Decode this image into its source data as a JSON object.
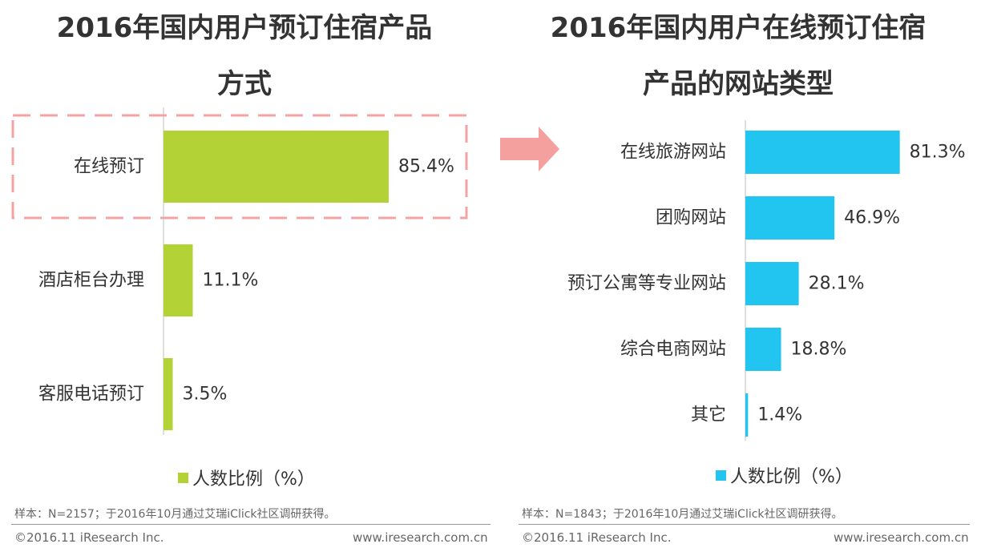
{
  "colors": {
    "left_bar": "#B2D235",
    "right_bar": "#22C5F0",
    "highlight": "#F3A3A3",
    "arrow": "#F4A09E",
    "axis": "#BFBFBF"
  },
  "chart_data": [
    {
      "type": "bar",
      "orientation": "horizontal",
      "title_line1": "2016年国内用户预订住宿产品",
      "title_line2": "方式",
      "categories": [
        "在线预订",
        "酒店柜台办理",
        "客服电话预订"
      ],
      "values": [
        85.4,
        11.1,
        3.5
      ],
      "value_labels": [
        "85.4%",
        "11.1%",
        "3.5%"
      ],
      "highlighted_category": "在线预订",
      "legend": "人数比例（%）",
      "xlim": [
        0,
        100
      ]
    },
    {
      "type": "bar",
      "orientation": "horizontal",
      "title_line1": "2016年国内用户在线预订住宿",
      "title_line2": "产品的网站类型",
      "categories": [
        "在线旅游网站",
        "团购网站",
        "预订公寓等专业网站",
        "综合电商网站",
        "其它"
      ],
      "values": [
        81.3,
        46.9,
        28.1,
        18.8,
        1.4
      ],
      "value_labels": [
        "81.3%",
        "46.9%",
        "28.1%",
        "18.8%",
        "1.4%"
      ],
      "legend": "人数比例（%）",
      "xlim": [
        0,
        100
      ]
    }
  ],
  "notes": {
    "left": "样本：N=2157；于2016年10月通过艾瑞iClick社区调研获得。",
    "right": "样本：N=1843；于2016年10月通过艾瑞iClick社区调研获得。"
  },
  "footer": {
    "copyright": "©2016.11 iResearch Inc.",
    "website": "www.iresearch.com.cn"
  }
}
